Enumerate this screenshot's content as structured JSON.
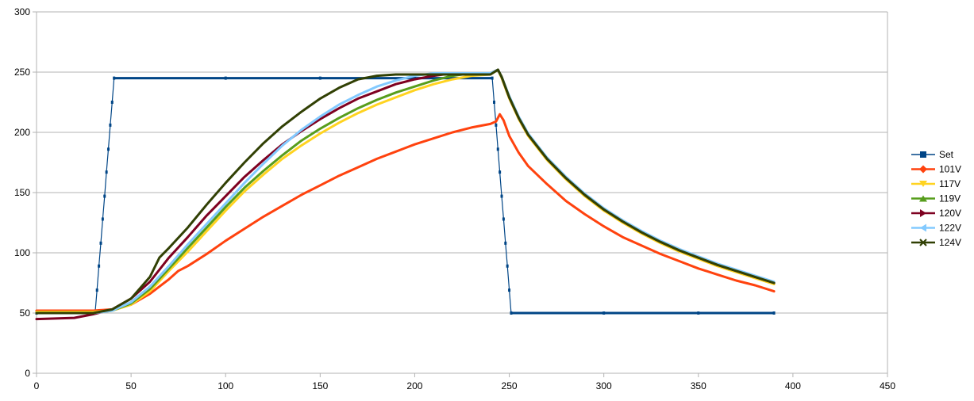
{
  "chart_data": {
    "type": "line",
    "title": "",
    "xlabel": "",
    "ylabel": "",
    "xlim": [
      0,
      450
    ],
    "ylim": [
      0,
      300
    ],
    "x_ticks": [
      0,
      50,
      100,
      150,
      200,
      250,
      300,
      350,
      400,
      450
    ],
    "y_ticks": [
      0,
      50,
      100,
      150,
      200,
      250,
      300
    ],
    "grid": "horizontal",
    "legend_position": "right",
    "series": [
      {
        "name": "Set",
        "color": "#004586",
        "marker": "square",
        "points": [
          [
            0,
            50
          ],
          [
            31,
            50
          ],
          [
            32,
            69
          ],
          [
            33,
            89
          ],
          [
            34,
            108
          ],
          [
            35,
            128
          ],
          [
            36,
            147
          ],
          [
            37,
            167
          ],
          [
            38,
            186
          ],
          [
            39,
            206
          ],
          [
            40,
            225
          ],
          [
            41,
            245
          ],
          [
            100,
            245
          ],
          [
            150,
            245
          ],
          [
            200,
            245
          ],
          [
            241,
            245
          ],
          [
            242,
            225
          ],
          [
            243,
            206
          ],
          [
            244,
            186
          ],
          [
            245,
            167
          ],
          [
            246,
            147
          ],
          [
            247,
            128
          ],
          [
            248,
            108
          ],
          [
            249,
            89
          ],
          [
            250,
            69
          ],
          [
            251,
            50
          ],
          [
            300,
            50
          ],
          [
            350,
            50
          ],
          [
            390,
            50
          ]
        ]
      },
      {
        "name": "101V",
        "color": "#ff420e",
        "marker": "diamond",
        "points": [
          [
            0,
            52
          ],
          [
            20,
            52
          ],
          [
            30,
            52
          ],
          [
            40,
            53
          ],
          [
            50,
            57
          ],
          [
            60,
            66
          ],
          [
            70,
            78
          ],
          [
            75,
            85
          ],
          [
            80,
            89
          ],
          [
            90,
            99
          ],
          [
            100,
            110
          ],
          [
            110,
            120
          ],
          [
            120,
            130
          ],
          [
            130,
            139
          ],
          [
            140,
            148
          ],
          [
            150,
            156
          ],
          [
            160,
            164
          ],
          [
            170,
            171
          ],
          [
            180,
            178
          ],
          [
            190,
            184
          ],
          [
            200,
            190
          ],
          [
            210,
            195
          ],
          [
            220,
            200
          ],
          [
            230,
            204
          ],
          [
            240,
            207
          ],
          [
            243,
            209
          ],
          [
            245,
            215
          ],
          [
            247,
            210
          ],
          [
            250,
            197
          ],
          [
            255,
            183
          ],
          [
            260,
            172
          ],
          [
            270,
            157
          ],
          [
            280,
            143
          ],
          [
            290,
            132
          ],
          [
            300,
            122
          ],
          [
            310,
            113
          ],
          [
            320,
            106
          ],
          [
            330,
            99
          ],
          [
            340,
            93
          ],
          [
            350,
            87
          ],
          [
            360,
            82
          ],
          [
            370,
            77
          ],
          [
            380,
            73
          ],
          [
            390,
            68
          ]
        ]
      },
      {
        "name": "117V",
        "color": "#ffd320",
        "marker": "triangle-down",
        "points": [
          [
            0,
            51
          ],
          [
            30,
            51
          ],
          [
            40,
            52
          ],
          [
            50,
            57
          ],
          [
            60,
            68
          ],
          [
            70,
            85
          ],
          [
            80,
            101
          ],
          [
            90,
            118
          ],
          [
            100,
            135
          ],
          [
            110,
            151
          ],
          [
            120,
            165
          ],
          [
            130,
            178
          ],
          [
            140,
            189
          ],
          [
            150,
            199
          ],
          [
            160,
            208
          ],
          [
            170,
            216
          ],
          [
            180,
            223
          ],
          [
            190,
            229
          ],
          [
            200,
            235
          ],
          [
            210,
            240
          ],
          [
            220,
            244
          ],
          [
            230,
            247
          ],
          [
            240,
            248
          ],
          [
            244,
            252
          ],
          [
            246,
            245
          ],
          [
            250,
            228
          ],
          [
            255,
            211
          ],
          [
            260,
            197
          ],
          [
            270,
            177
          ],
          [
            280,
            161
          ],
          [
            290,
            147
          ],
          [
            300,
            135
          ],
          [
            310,
            125
          ],
          [
            320,
            116
          ],
          [
            330,
            108
          ],
          [
            340,
            101
          ],
          [
            350,
            95
          ],
          [
            360,
            89
          ],
          [
            370,
            84
          ],
          [
            380,
            79
          ],
          [
            390,
            74
          ]
        ]
      },
      {
        "name": "119V",
        "color": "#579d1c",
        "marker": "triangle-up",
        "points": [
          [
            0,
            50
          ],
          [
            30,
            50
          ],
          [
            40,
            52
          ],
          [
            50,
            58
          ],
          [
            60,
            70
          ],
          [
            70,
            87
          ],
          [
            80,
            104
          ],
          [
            90,
            121
          ],
          [
            100,
            138
          ],
          [
            110,
            154
          ],
          [
            120,
            168
          ],
          [
            130,
            181
          ],
          [
            140,
            193
          ],
          [
            150,
            203
          ],
          [
            160,
            212
          ],
          [
            170,
            220
          ],
          [
            180,
            227
          ],
          [
            190,
            233
          ],
          [
            200,
            238
          ],
          [
            210,
            243
          ],
          [
            220,
            247
          ],
          [
            230,
            249
          ],
          [
            240,
            249
          ],
          [
            244,
            252
          ],
          [
            246,
            246
          ],
          [
            250,
            229
          ],
          [
            255,
            212
          ],
          [
            260,
            198
          ],
          [
            270,
            178
          ],
          [
            280,
            162
          ],
          [
            290,
            148
          ],
          [
            300,
            136
          ],
          [
            310,
            126
          ],
          [
            320,
            117
          ],
          [
            330,
            109
          ],
          [
            340,
            102
          ],
          [
            350,
            96
          ],
          [
            360,
            90
          ],
          [
            370,
            85
          ],
          [
            380,
            80
          ],
          [
            390,
            75
          ]
        ]
      },
      {
        "name": "120V",
        "color": "#7e0021",
        "marker": "triangle-right",
        "points": [
          [
            0,
            45
          ],
          [
            20,
            46
          ],
          [
            30,
            49
          ],
          [
            40,
            53
          ],
          [
            50,
            62
          ],
          [
            60,
            76
          ],
          [
            70,
            96
          ],
          [
            80,
            113
          ],
          [
            90,
            131
          ],
          [
            100,
            147
          ],
          [
            110,
            163
          ],
          [
            120,
            177
          ],
          [
            130,
            190
          ],
          [
            140,
            201
          ],
          [
            150,
            211
          ],
          [
            160,
            220
          ],
          [
            170,
            228
          ],
          [
            180,
            234
          ],
          [
            190,
            240
          ],
          [
            200,
            244
          ],
          [
            210,
            247
          ],
          [
            220,
            249
          ],
          [
            230,
            249
          ],
          [
            240,
            249
          ],
          [
            244,
            252
          ],
          [
            246,
            246
          ],
          [
            250,
            229
          ],
          [
            255,
            212
          ],
          [
            260,
            198
          ],
          [
            270,
            178
          ],
          [
            280,
            162
          ],
          [
            290,
            148
          ],
          [
            300,
            136
          ],
          [
            310,
            126
          ],
          [
            320,
            117
          ],
          [
            330,
            109
          ],
          [
            340,
            102
          ],
          [
            350,
            96
          ],
          [
            360,
            90
          ],
          [
            370,
            85
          ],
          [
            380,
            80
          ],
          [
            390,
            75
          ]
        ]
      },
      {
        "name": "122V",
        "color": "#83caff",
        "marker": "triangle-left",
        "points": [
          [
            0,
            50
          ],
          [
            30,
            50
          ],
          [
            40,
            52
          ],
          [
            50,
            59
          ],
          [
            60,
            72
          ],
          [
            70,
            89
          ],
          [
            80,
            107
          ],
          [
            90,
            124
          ],
          [
            100,
            141
          ],
          [
            110,
            158
          ],
          [
            120,
            174
          ],
          [
            130,
            189
          ],
          [
            140,
            202
          ],
          [
            150,
            213
          ],
          [
            160,
            223
          ],
          [
            170,
            231
          ],
          [
            180,
            238
          ],
          [
            190,
            243
          ],
          [
            200,
            247
          ],
          [
            210,
            249
          ],
          [
            220,
            249
          ],
          [
            230,
            249
          ],
          [
            240,
            249
          ],
          [
            244,
            252
          ],
          [
            246,
            246
          ],
          [
            250,
            230
          ],
          [
            255,
            213
          ],
          [
            260,
            199
          ],
          [
            270,
            179
          ],
          [
            280,
            163
          ],
          [
            290,
            149
          ],
          [
            300,
            137
          ],
          [
            310,
            127
          ],
          [
            320,
            118
          ],
          [
            330,
            110
          ],
          [
            340,
            103
          ],
          [
            350,
            97
          ],
          [
            360,
            91
          ],
          [
            370,
            86
          ],
          [
            380,
            81
          ],
          [
            390,
            76
          ]
        ]
      },
      {
        "name": "124V",
        "color": "#314004",
        "marker": "x",
        "points": [
          [
            0,
            50
          ],
          [
            30,
            50
          ],
          [
            40,
            53
          ],
          [
            50,
            62
          ],
          [
            60,
            80
          ],
          [
            65,
            96
          ],
          [
            70,
            104
          ],
          [
            80,
            121
          ],
          [
            90,
            140
          ],
          [
            100,
            158
          ],
          [
            110,
            175
          ],
          [
            120,
            191
          ],
          [
            130,
            205
          ],
          [
            140,
            217
          ],
          [
            150,
            228
          ],
          [
            160,
            237
          ],
          [
            170,
            244
          ],
          [
            180,
            247
          ],
          [
            190,
            248
          ],
          [
            200,
            248
          ],
          [
            210,
            248
          ],
          [
            220,
            248
          ],
          [
            230,
            248
          ],
          [
            240,
            248
          ],
          [
            244,
            252
          ],
          [
            246,
            246
          ],
          [
            250,
            229
          ],
          [
            255,
            212
          ],
          [
            260,
            198
          ],
          [
            270,
            178
          ],
          [
            280,
            162
          ],
          [
            290,
            148
          ],
          [
            300,
            136
          ],
          [
            310,
            126
          ],
          [
            320,
            117
          ],
          [
            330,
            109
          ],
          [
            340,
            102
          ],
          [
            350,
            96
          ],
          [
            360,
            90
          ],
          [
            370,
            85
          ],
          [
            380,
            80
          ],
          [
            390,
            75
          ]
        ]
      }
    ]
  }
}
